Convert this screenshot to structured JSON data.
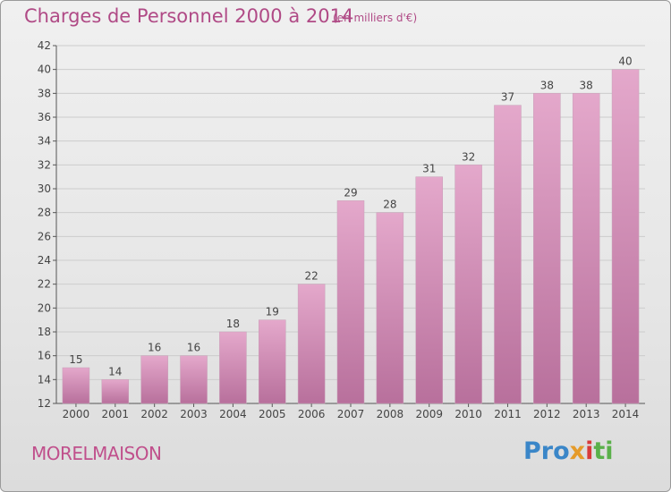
{
  "header": {
    "title": "Charges de Personnel 2000 à 2014",
    "subtitle": "(en milliers d'€)"
  },
  "footer": {
    "commune": "MORELMAISON",
    "brand_parts": [
      "Pro",
      "x",
      "i",
      "ti"
    ]
  },
  "colors": {
    "bar_light": "#e4a8cb",
    "bar_dark": "#b8709c",
    "text_accent": "#b04a86",
    "grid": "#cccccc"
  },
  "chart_data": {
    "type": "bar",
    "title": "Charges de Personnel 2000 à 2014",
    "subtitle": "(en milliers d'€)",
    "categories": [
      "2000",
      "2001",
      "2002",
      "2003",
      "2004",
      "2005",
      "2006",
      "2007",
      "2008",
      "2009",
      "2010",
      "2011",
      "2012",
      "2013",
      "2014"
    ],
    "values": [
      15,
      14,
      16,
      16,
      18,
      19,
      22,
      29,
      28,
      31,
      32,
      37,
      38,
      38,
      40
    ],
    "ylim": [
      12,
      42
    ],
    "yticks": [
      12,
      14,
      16,
      18,
      20,
      22,
      24,
      26,
      28,
      30,
      32,
      34,
      36,
      38,
      40,
      42
    ],
    "grid": true,
    "data_labels": true
  }
}
